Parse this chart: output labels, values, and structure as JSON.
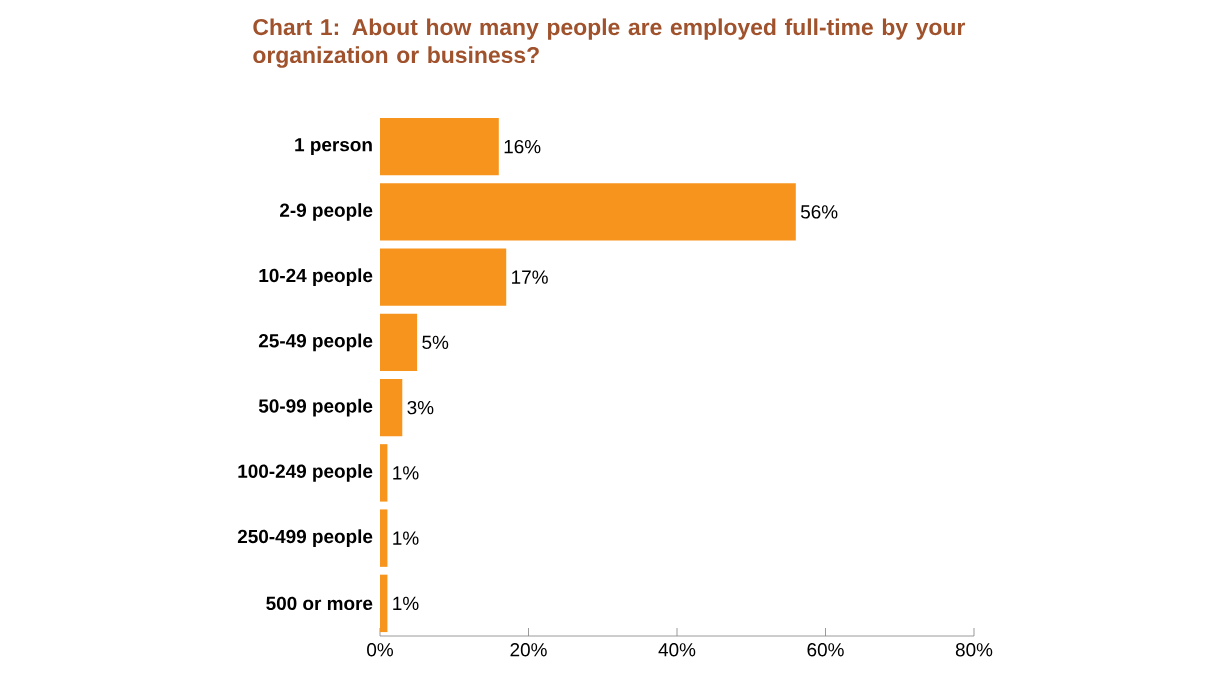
{
  "chart_data": {
    "type": "bar",
    "orientation": "horizontal",
    "title": "**Chart 1:** About how many people are employed full-time by your organization or business?",
    "categories": [
      "1 person",
      "2-9 people",
      "10-24 people",
      "25-49 people",
      "50-99 people",
      "100-249 people",
      "250-499 people",
      "500 or more"
    ],
    "values": [
      16,
      56,
      17,
      5,
      3,
      1,
      1,
      1
    ],
    "value_labels": [
      "16%",
      "56%",
      "17%",
      "5%",
      "3%",
      "1%",
      "1%",
      "1%"
    ],
    "color": "#f7941d",
    "xlim": [
      0,
      80
    ],
    "xticks": [
      {
        "value": 0,
        "label": "0%"
      },
      {
        "value": 20,
        "label": "20%"
      },
      {
        "value": 40,
        "label": "40%"
      },
      {
        "value": 60,
        "label": "60%"
      },
      {
        "value": 80,
        "label": "80%"
      }
    ],
    "grid": false
  }
}
